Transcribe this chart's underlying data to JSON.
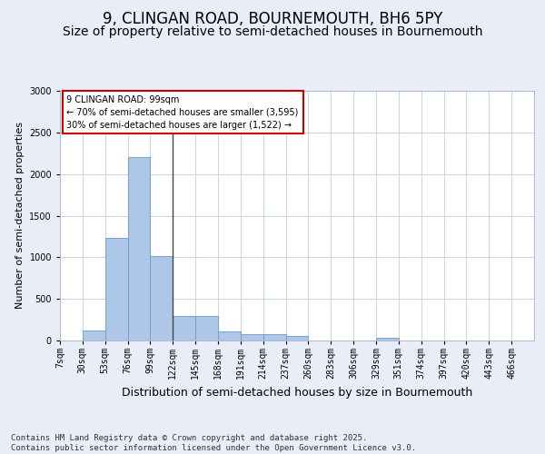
{
  "title": "9, CLINGAN ROAD, BOURNEMOUTH, BH6 5PY",
  "subtitle": "Size of property relative to semi-detached houses in Bournemouth",
  "xlabel": "Distribution of semi-detached houses by size in Bournemouth",
  "ylabel": "Number of semi-detached properties",
  "categories": [
    "7sqm",
    "30sqm",
    "53sqm",
    "76sqm",
    "99sqm",
    "122sqm",
    "145sqm",
    "168sqm",
    "191sqm",
    "214sqm",
    "237sqm",
    "260sqm",
    "283sqm",
    "306sqm",
    "329sqm",
    "351sqm",
    "374sqm",
    "397sqm",
    "420sqm",
    "443sqm",
    "466sqm"
  ],
  "values": [
    0,
    120,
    1230,
    2200,
    1020,
    300,
    300,
    110,
    80,
    80,
    60,
    0,
    0,
    0,
    30,
    0,
    0,
    0,
    0,
    0,
    0
  ],
  "bar_color": "#aec6e8",
  "bar_edge_color": "#6a9cc0",
  "highlight_bar_index": 4,
  "highlight_line_color": "#444444",
  "annotation_text": "9 CLINGAN ROAD: 99sqm\n← 70% of semi-detached houses are smaller (3,595)\n30% of semi-detached houses are larger (1,522) →",
  "annotation_box_color": "#ffffff",
  "annotation_box_edge_color": "#cc0000",
  "ylim": [
    0,
    3000
  ],
  "yticks": [
    0,
    500,
    1000,
    1500,
    2000,
    2500,
    3000
  ],
  "background_color": "#e8edf8",
  "plot_background": "#ffffff",
  "footer": "Contains HM Land Registry data © Crown copyright and database right 2025.\nContains public sector information licensed under the Open Government Licence v3.0.",
  "title_fontsize": 12,
  "subtitle_fontsize": 10,
  "xlabel_fontsize": 9,
  "ylabel_fontsize": 8,
  "tick_fontsize": 7,
  "footer_fontsize": 6.5
}
